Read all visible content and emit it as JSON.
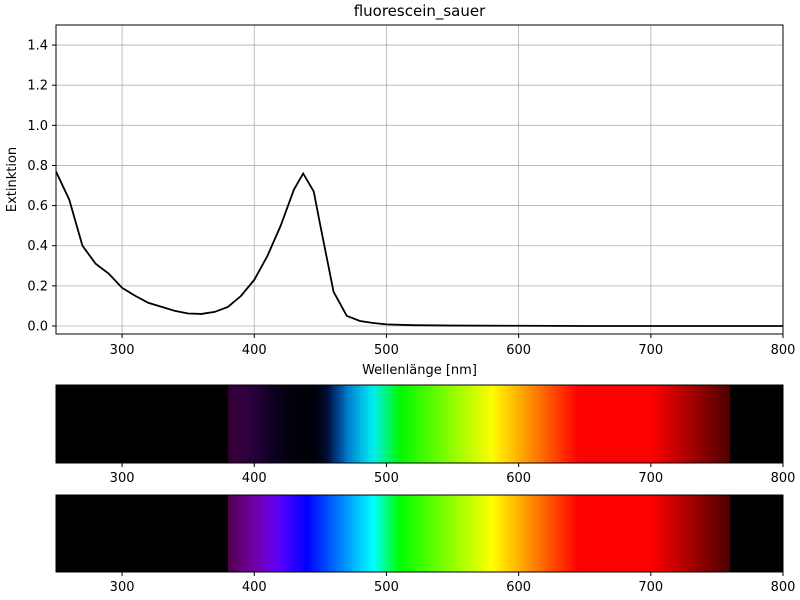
{
  "chart_data": [
    {
      "type": "line",
      "title": "fluorescein_sauer",
      "xlabel": "Wellenlänge [nm]",
      "ylabel": "Extinktion",
      "x": [
        250,
        260,
        270,
        280,
        290,
        300,
        310,
        320,
        330,
        340,
        350,
        360,
        370,
        380,
        390,
        400,
        410,
        420,
        430,
        437,
        445,
        450,
        460,
        470,
        480,
        490,
        500,
        520,
        550,
        600,
        650,
        700,
        750,
        800
      ],
      "values": [
        0.77,
        0.63,
        0.4,
        0.31,
        0.26,
        0.19,
        0.15,
        0.115,
        0.095,
        0.075,
        0.062,
        0.06,
        0.07,
        0.095,
        0.15,
        0.23,
        0.35,
        0.5,
        0.68,
        0.76,
        0.67,
        0.5,
        0.17,
        0.05,
        0.025,
        0.015,
        0.008,
        0.004,
        0.002,
        0.001,
        0,
        0,
        0,
        0
      ],
      "color": "#000000",
      "xlim": [
        250,
        800
      ],
      "ylim": [
        -0.04,
        1.5
      ],
      "xticks": [
        300,
        400,
        500,
        600,
        700,
        800
      ],
      "yticks": [
        {
          "value": 0,
          "label": "0.0"
        },
        {
          "value": 0.2,
          "label": "0.2"
        },
        {
          "value": 0.4,
          "label": "0.4"
        },
        {
          "value": 0.6,
          "label": "0.6"
        },
        {
          "value": 0.8,
          "label": "0.8"
        },
        {
          "value": 1.0,
          "label": "1.0"
        },
        {
          "value": 1.2,
          "label": "1.2"
        },
        {
          "value": 1.4,
          "label": "1.4"
        }
      ],
      "grid": true
    },
    {
      "type": "spectrum",
      "filtered": true,
      "xlim": [
        250,
        800
      ],
      "xticks": [
        300,
        400,
        500,
        600,
        700,
        800
      ]
    },
    {
      "type": "spectrum",
      "filtered": false,
      "xlim": [
        250,
        800
      ],
      "xticks": [
        300,
        400,
        500,
        600,
        700,
        800
      ]
    }
  ]
}
